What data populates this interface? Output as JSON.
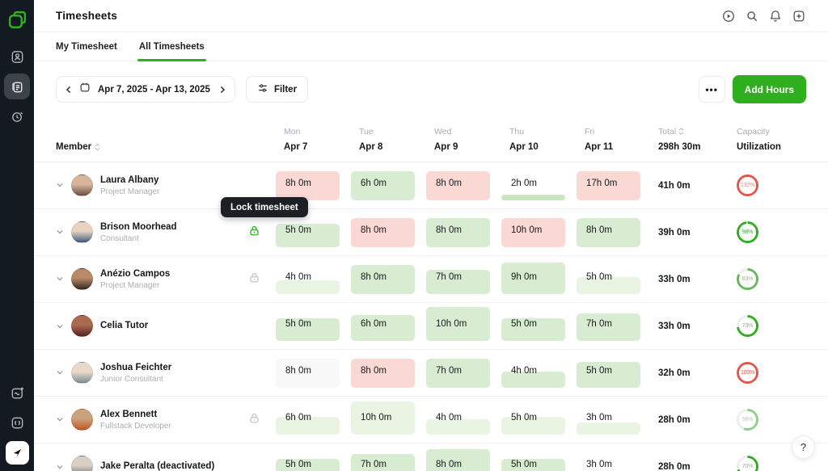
{
  "header": {
    "title": "Timesheets",
    "icons": [
      "demo-play",
      "search",
      "notifications",
      "add-new"
    ]
  },
  "sidebar": {
    "top_icons": [
      "logo",
      "contacts",
      "timesheets",
      "time-tracker"
    ],
    "bottom_icons": [
      "whats-new",
      "developer",
      "app-badge"
    ]
  },
  "tabs": [
    {
      "label": "My Timesheet",
      "active": false
    },
    {
      "label": "All Timesheets",
      "active": true
    }
  ],
  "toolbar": {
    "date_range": "Apr 7, 2025 - Apr 13, 2025",
    "filter_label": "Filter",
    "more_label": "•••",
    "add_hours_label": "Add Hours"
  },
  "table": {
    "member_header": "Member",
    "columns": [
      {
        "day": "Mon",
        "date": "Apr 7"
      },
      {
        "day": "Tue",
        "date": "Apr 8"
      },
      {
        "day": "Wed",
        "date": "Apr 9"
      },
      {
        "day": "Thu",
        "date": "Apr 10"
      },
      {
        "day": "Fri",
        "date": "Apr 11"
      }
    ],
    "total_header": "Total",
    "total_value": "298h 30m",
    "capacity_header": "Capacity",
    "capacity_sub": "Utilization",
    "rows": [
      {
        "name": "Laura Albany",
        "role": "Project Manager",
        "lock": "none",
        "avatar": [
          "#d8b49b",
          "#6b4f3f"
        ],
        "cells": [
          {
            "label": "8h 0m",
            "bg": "pink",
            "fill": 100
          },
          {
            "label": "6h 0m",
            "bg": "green",
            "fill": 100
          },
          {
            "label": "8h 0m",
            "bg": "pink",
            "fill": 100
          },
          {
            "label": "2h 0m",
            "bg": "bar",
            "fill": 20
          },
          {
            "label": "17h 0m",
            "bg": "pink",
            "fill": 100
          }
        ],
        "total": "41h 0m",
        "ring": {
          "label": "132%",
          "arc": 100,
          "color": "#e2574d",
          "label_color": "#de8f88"
        }
      },
      {
        "name": "Brison Moorhead",
        "role": "Consultant",
        "lock": "green",
        "avatar": [
          "#e8d3c0",
          "#3d5a82"
        ],
        "cells": [
          {
            "label": "5h 0m",
            "bg": "green",
            "fill": 80
          },
          {
            "label": "8h 0m",
            "bg": "pink",
            "fill": 100
          },
          {
            "label": "8h 0m",
            "bg": "green",
            "fill": 100
          },
          {
            "label": "10h 0m",
            "bg": "pink",
            "fill": 100
          },
          {
            "label": "8h 0m",
            "bg": "green",
            "fill": 100
          }
        ],
        "total": "39h 0m",
        "ring": {
          "label": "98%",
          "arc": 98,
          "color": "#2fae1e",
          "label_color": "#47a13e"
        }
      },
      {
        "name": "Anézio Campos",
        "role": "Project Manager",
        "lock": "gray",
        "avatar": [
          "#b98a68",
          "#2f2a26"
        ],
        "cells": [
          {
            "label": "4h 0m",
            "bg": "green-light",
            "fill": 48
          },
          {
            "label": "8h 0m",
            "bg": "green",
            "fill": 100
          },
          {
            "label": "7h 0m",
            "bg": "green",
            "fill": 82
          },
          {
            "label": "9h 0m",
            "bg": "green",
            "fill": 108
          },
          {
            "label": "5h 0m",
            "bg": "green-light",
            "fill": 58
          }
        ],
        "total": "33h 0m",
        "ring": {
          "label": "83%",
          "arc": 83,
          "color": "#63bb58",
          "label_color": "#9cb598"
        }
      },
      {
        "name": "Celia Tutor",
        "role": "",
        "lock": "none",
        "avatar": [
          "#a96a4f",
          "#58241e"
        ],
        "cells": [
          {
            "label": "5h 0m",
            "bg": "green",
            "fill": 78
          },
          {
            "label": "6h 0m",
            "bg": "green",
            "fill": 88
          },
          {
            "label": "10h 0m",
            "bg": "green",
            "fill": 118
          },
          {
            "label": "5h 0m",
            "bg": "green",
            "fill": 78
          },
          {
            "label": "7h 0m",
            "bg": "green",
            "fill": 95
          }
        ],
        "total": "33h 0m",
        "ring": {
          "label": "73%",
          "arc": 73,
          "color": "#2fae1e",
          "label_color": "#9aa59e"
        }
      },
      {
        "name": "Joshua Feichter",
        "role": "Junior Consultant",
        "lock": "none",
        "avatar": [
          "#ead9c6",
          "#7a8a94"
        ],
        "cells": [
          {
            "label": "8h 0m",
            "bg": "plain",
            "fill": 100
          },
          {
            "label": "8h 0m",
            "bg": "pink",
            "fill": 100
          },
          {
            "label": "7h 0m",
            "bg": "green",
            "fill": 100
          },
          {
            "label": "4h 0m",
            "bg": "green",
            "fill": 55
          },
          {
            "label": "5h 0m",
            "bg": "green",
            "fill": 88
          }
        ],
        "total": "32h 0m",
        "ring": {
          "label": "100%",
          "arc": 100,
          "color": "#e2574d",
          "label_color": "#e0554b"
        }
      },
      {
        "name": "Alex Bennett",
        "role": "Fullstack Developer",
        "lock": "gray",
        "avatar": [
          "#caa27e",
          "#c2571f"
        ],
        "cells": [
          {
            "label": "6h 0m",
            "bg": "green-light",
            "fill": 62
          },
          {
            "label": "10h 0m",
            "bg": "green-light",
            "fill": 115
          },
          {
            "label": "4h 0m",
            "bg": "green-light",
            "fill": 52
          },
          {
            "label": "5h 0m",
            "bg": "green-light",
            "fill": 60
          },
          {
            "label": "3h 0m",
            "bg": "green-light",
            "fill": 42
          }
        ],
        "total": "28h 0m",
        "ring": {
          "label": "56%",
          "arc": 56,
          "color": "#8fd089",
          "label_color": "#bac9b6"
        }
      },
      {
        "name": "Jake Peralta (deactivated)",
        "role": "",
        "lock": "none",
        "avatar": [
          "#d9cfc4",
          "#6a7076"
        ],
        "cells": [
          {
            "label": "5h 0m",
            "bg": "green",
            "fill": 78
          },
          {
            "label": "7h 0m",
            "bg": "green",
            "fill": 95
          },
          {
            "label": "8h 0m",
            "bg": "green",
            "fill": 112
          },
          {
            "label": "5h 0m",
            "bg": "green",
            "fill": 78
          },
          {
            "label": "3h 0m",
            "bg": "none",
            "fill": 0
          }
        ],
        "total": "28h 0m",
        "ring": {
          "label": "70%",
          "arc": 70,
          "color": "#2fae1e",
          "label_color": "#9cb598"
        }
      }
    ]
  },
  "tooltip": {
    "text": "Lock timesheet"
  },
  "help": {
    "label": "?"
  },
  "colors": {
    "accent_green": "#2fae1e",
    "cell_pink": "#fad9d5",
    "cell_green": "#d7ecd0",
    "cell_green_light": "#e9f4e2",
    "ring_red": "#e2574d",
    "sidebar_bg": "#141a21"
  }
}
